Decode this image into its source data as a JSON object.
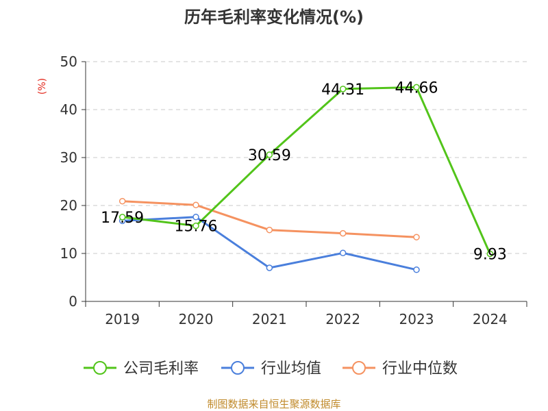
{
  "chart_data": {
    "type": "line",
    "title": "历年毛利率变化情况(%)",
    "ylabel": "(%)",
    "xlabel": "",
    "categories": [
      "2019",
      "2020",
      "2021",
      "2022",
      "2023",
      "2024"
    ],
    "ylim": [
      0,
      50
    ],
    "yticks": [
      0,
      10,
      20,
      30,
      40,
      50
    ],
    "grid": true,
    "legend_position": "bottom",
    "series": [
      {
        "name": "公司毛利率",
        "color": "#52c41a",
        "values": [
          17.59,
          15.76,
          30.59,
          44.31,
          44.66,
          9.93
        ],
        "data_labels": [
          "17.59",
          "15.76",
          "30.59",
          "44.31",
          "44.66",
          "9.93"
        ]
      },
      {
        "name": "行业均值",
        "color": "#4a7fdc",
        "values": [
          16.8,
          17.6,
          7.0,
          10.1,
          6.6,
          null
        ]
      },
      {
        "name": "行业中位数",
        "color": "#f59260",
        "values": [
          20.9,
          20.1,
          14.9,
          14.2,
          13.4,
          null
        ]
      }
    ]
  },
  "footer": {
    "source": "制图数据来自恒生聚源数据库"
  }
}
